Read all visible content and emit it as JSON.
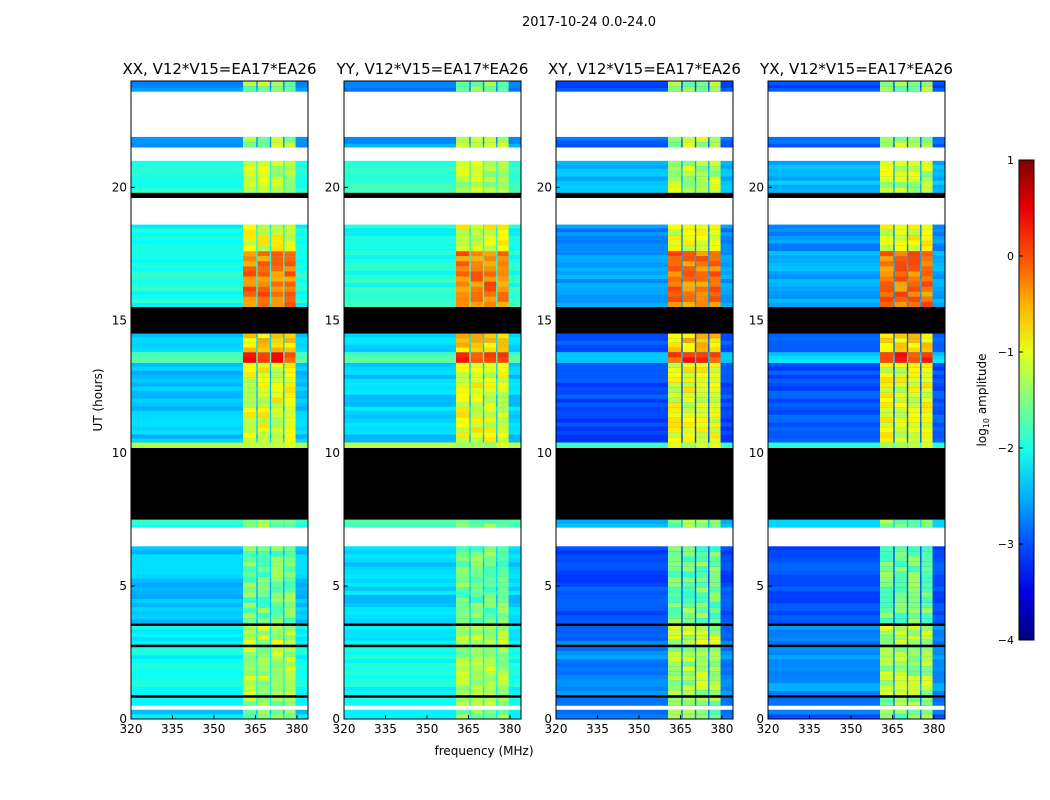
{
  "chart_data": {
    "type": "heatmap",
    "title": "2017-10-24 0.0-24.0",
    "xlabel": "frequency (MHz)",
    "ylabel": "UT (hours)",
    "xlim": [
      320,
      384
    ],
    "ylim": [
      0,
      24
    ],
    "xticks": [
      "320",
      "335",
      "350",
      "365",
      "380"
    ],
    "xtick_values": [
      320,
      335,
      350,
      365,
      380
    ],
    "yticks": [
      "0",
      "5",
      "10",
      "15",
      "20"
    ],
    "ytick_values": [
      0,
      5,
      10,
      15,
      20
    ],
    "colorbar": {
      "label": "log10 amplitude",
      "label_main": "log",
      "label_sub": "10",
      "label_rest": " amplitude",
      "range": [
        -4,
        1
      ],
      "ticks": [
        "1",
        "0",
        "−1",
        "−2",
        "−3",
        "−4"
      ],
      "tick_values": [
        1,
        0,
        -1,
        -2,
        -3,
        -4
      ],
      "colormap": "jet"
    },
    "bright_channels_mhz": [
      [
        360.5,
        365.3
      ],
      [
        365.8,
        370.2
      ],
      [
        370.7,
        375
      ],
      [
        375.5,
        379.5
      ]
    ],
    "segments": [
      {
        "t": [
          0,
          0.35
        ],
        "kind": "data",
        "bg": -2.7,
        "band": -1.5
      },
      {
        "t": [
          0.35,
          0.5
        ],
        "kind": "blank"
      },
      {
        "t": [
          0.5,
          0.8
        ],
        "kind": "data",
        "bg": -2.6,
        "band": -1.4
      },
      {
        "t": [
          0.8,
          0.9
        ],
        "kind": "flagged"
      },
      {
        "t": [
          0.9,
          2.7
        ],
        "kind": "data",
        "bg": -2.5,
        "band": -1.3
      },
      {
        "t": [
          2.7,
          2.8
        ],
        "kind": "flagged"
      },
      {
        "t": [
          2.8,
          3.5
        ],
        "kind": "data",
        "bg": -2.6,
        "band": -1.2
      },
      {
        "t": [
          3.5,
          3.6
        ],
        "kind": "flagged"
      },
      {
        "t": [
          3.6,
          6.5
        ],
        "kind": "data",
        "bg": -2.8,
        "band": -1.6
      },
      {
        "t": [
          6.5,
          7.2
        ],
        "kind": "blank"
      },
      {
        "t": [
          7.2,
          7.5
        ],
        "kind": "data",
        "bg": -2.3,
        "band": -1.5
      },
      {
        "t": [
          7.5,
          10.2
        ],
        "kind": "flagged"
      },
      {
        "t": [
          10.2,
          10.4
        ],
        "kind": "data",
        "bg": -1.7,
        "band": -1.2
      },
      {
        "t": [
          10.4,
          13.4
        ],
        "kind": "data",
        "bg": -2.8,
        "band": -1.0
      },
      {
        "t": [
          13.4,
          13.8
        ],
        "kind": "data",
        "bg": -2.2,
        "band": 0.1
      },
      {
        "t": [
          13.8,
          14.5
        ],
        "kind": "data",
        "bg": -2.8,
        "band": -0.7
      },
      {
        "t": [
          14.5,
          15.5
        ],
        "kind": "flagged"
      },
      {
        "t": [
          15.5,
          17.6
        ],
        "kind": "data",
        "bg": -2.4,
        "band": -0.2
      },
      {
        "t": [
          17.6,
          18.6
        ],
        "kind": "data",
        "bg": -2.5,
        "band": -1.0
      },
      {
        "t": [
          18.6,
          19.6
        ],
        "kind": "blank"
      },
      {
        "t": [
          19.6,
          19.8
        ],
        "kind": "flagged"
      },
      {
        "t": [
          19.8,
          21.0
        ],
        "kind": "data",
        "bg": -2.3,
        "band": -1.2
      },
      {
        "t": [
          21.0,
          21.5
        ],
        "kind": "blank"
      },
      {
        "t": [
          21.5,
          21.9
        ],
        "kind": "data",
        "bg": -2.8,
        "band": -1.3
      },
      {
        "t": [
          21.9,
          23.6
        ],
        "kind": "blank"
      },
      {
        "t": [
          23.6,
          24
        ],
        "kind": "data",
        "bg": -2.9,
        "band": -1.4
      }
    ],
    "panels": [
      {
        "title": "XX, V12*V15=EA17*EA26",
        "bg_offset": 0.4
      },
      {
        "title": "YY, V12*V15=EA17*EA26",
        "bg_offset": 0.45
      },
      {
        "title": "XY, V12*V15=EA17*EA26",
        "bg_offset": -0.2
      },
      {
        "title": "YX, V12*V15=EA17*EA26",
        "bg_offset": -0.15
      }
    ]
  }
}
